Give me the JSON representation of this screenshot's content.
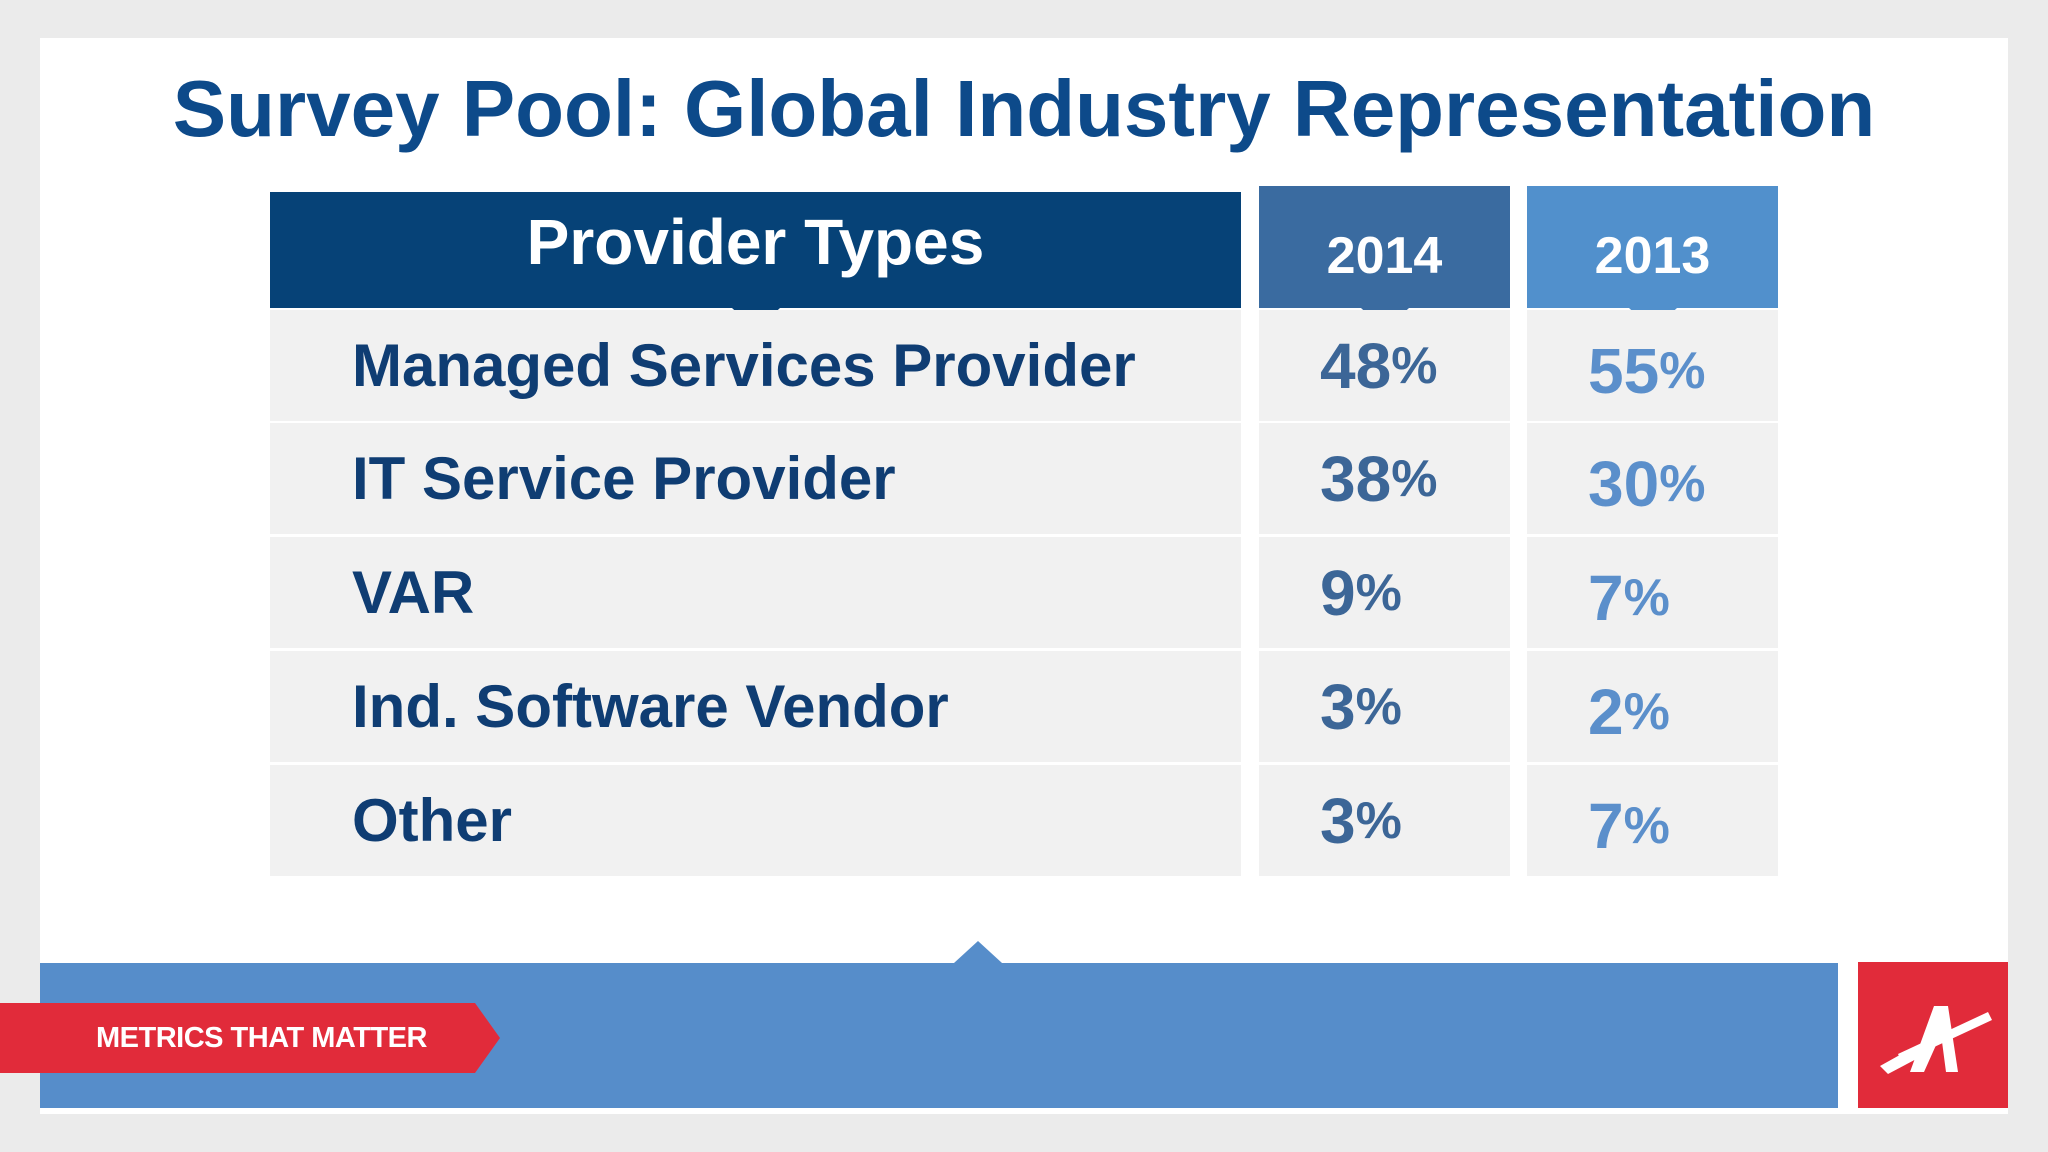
{
  "title": "Survey Pool: Global Industry Representation",
  "colors": {
    "title": "#0d4a8a",
    "header_types": "#064277",
    "header_y1": "#3a6ba0",
    "header_y2": "#5190cc",
    "label_text": "#0f3d73",
    "y1_text": "#3c6697",
    "y2_text": "#5b8fcb",
    "band": "#568dca",
    "ribbon": "#e12b3a",
    "logo": "#e12b3a"
  },
  "footer": {
    "tagline": "METRICS THAT MATTER",
    "logo_icon": "company-logo-icon"
  },
  "chart_data": {
    "type": "table",
    "title": "Survey Pool: Global Industry Representation",
    "columns": [
      "Provider Types",
      "2014",
      "2013"
    ],
    "categories": [
      "Managed Services Provider",
      "IT Service Provider",
      "VAR",
      "Ind. Software Vendor",
      "Other"
    ],
    "series": [
      {
        "name": "2014",
        "values": [
          48,
          38,
          9,
          3,
          3
        ]
      },
      {
        "name": "2013",
        "values": [
          55,
          30,
          7,
          2,
          7
        ]
      }
    ],
    "unit": "%"
  }
}
